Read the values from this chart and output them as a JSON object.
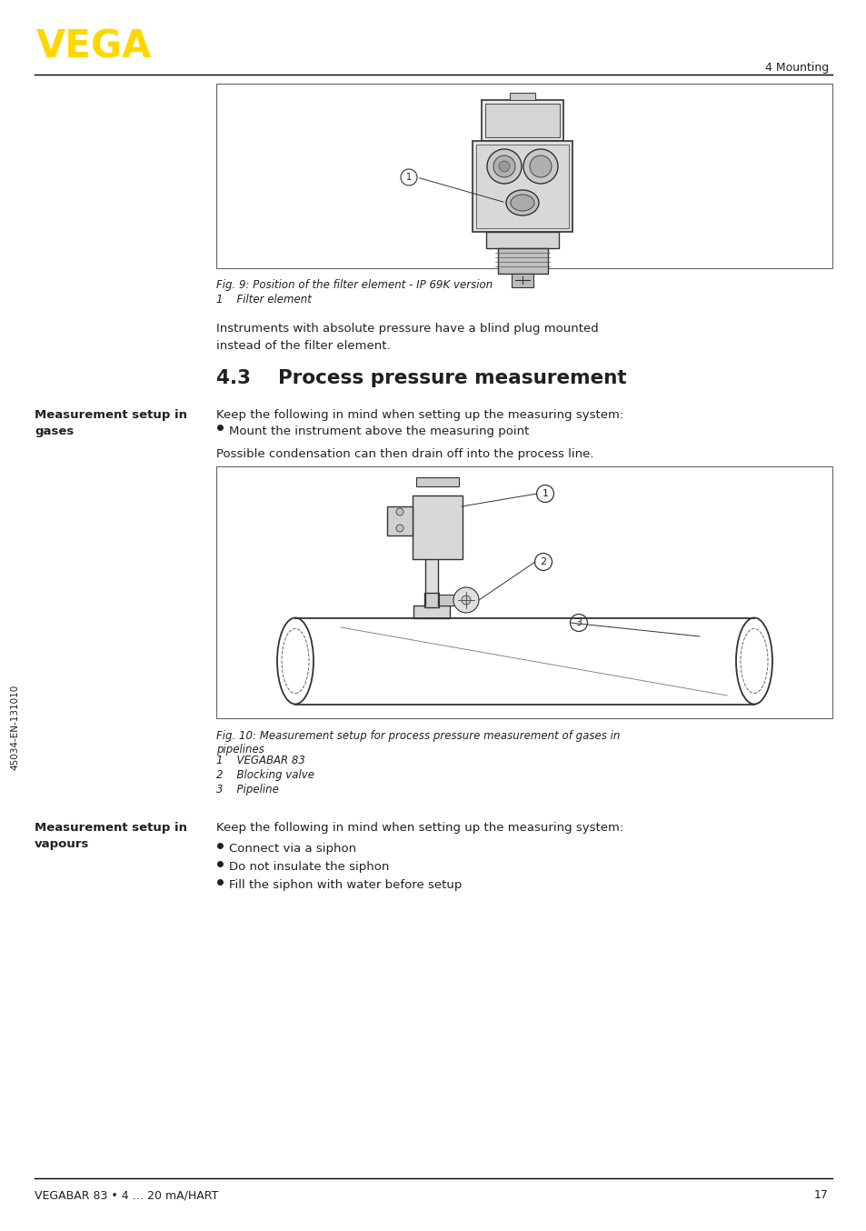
{
  "page_bg": "#ffffff",
  "text_color": "#231f20",
  "header_line_color": "#000000",
  "footer_line_color": "#000000",
  "vega_logo_color": "#FFD700",
  "header_right_text": "4 Mounting",
  "footer_left_text": "VEGABAR 83 • 4 … 20 mA/HART",
  "footer_right_text": "17",
  "sidebar_text": "45034-EN-131010",
  "fig9_caption": "Fig. 9: Position of the filter element - IP 69K version",
  "fig9_item1": "1    Filter element",
  "para1": "Instruments with absolute pressure have a blind plug mounted\ninstead of the filter element.",
  "section_title": "4.3    Process pressure measurement",
  "left_label1": "Measurement setup in\ngases",
  "text1": "Keep the following in mind when setting up the measuring system:",
  "bullet1": "Mount the instrument above the measuring point",
  "para2": "Possible condensation can then drain off into the process line.",
  "fig10_caption": "Fig. 10: Measurement setup for process pressure measurement of gases in\npipelines",
  "fig10_item1": "1    VEGABAR 83",
  "fig10_item2": "2    Blocking valve",
  "fig10_item3": "3    Pipeline",
  "left_label2": "Measurement setup in\nvapours",
  "text2": "Keep the following in mind when setting up the measuring system:",
  "bullet2a": "Connect via a siphon",
  "bullet2b": "Do not insulate the siphon",
  "bullet2c": "Fill the siphon with water before setup"
}
